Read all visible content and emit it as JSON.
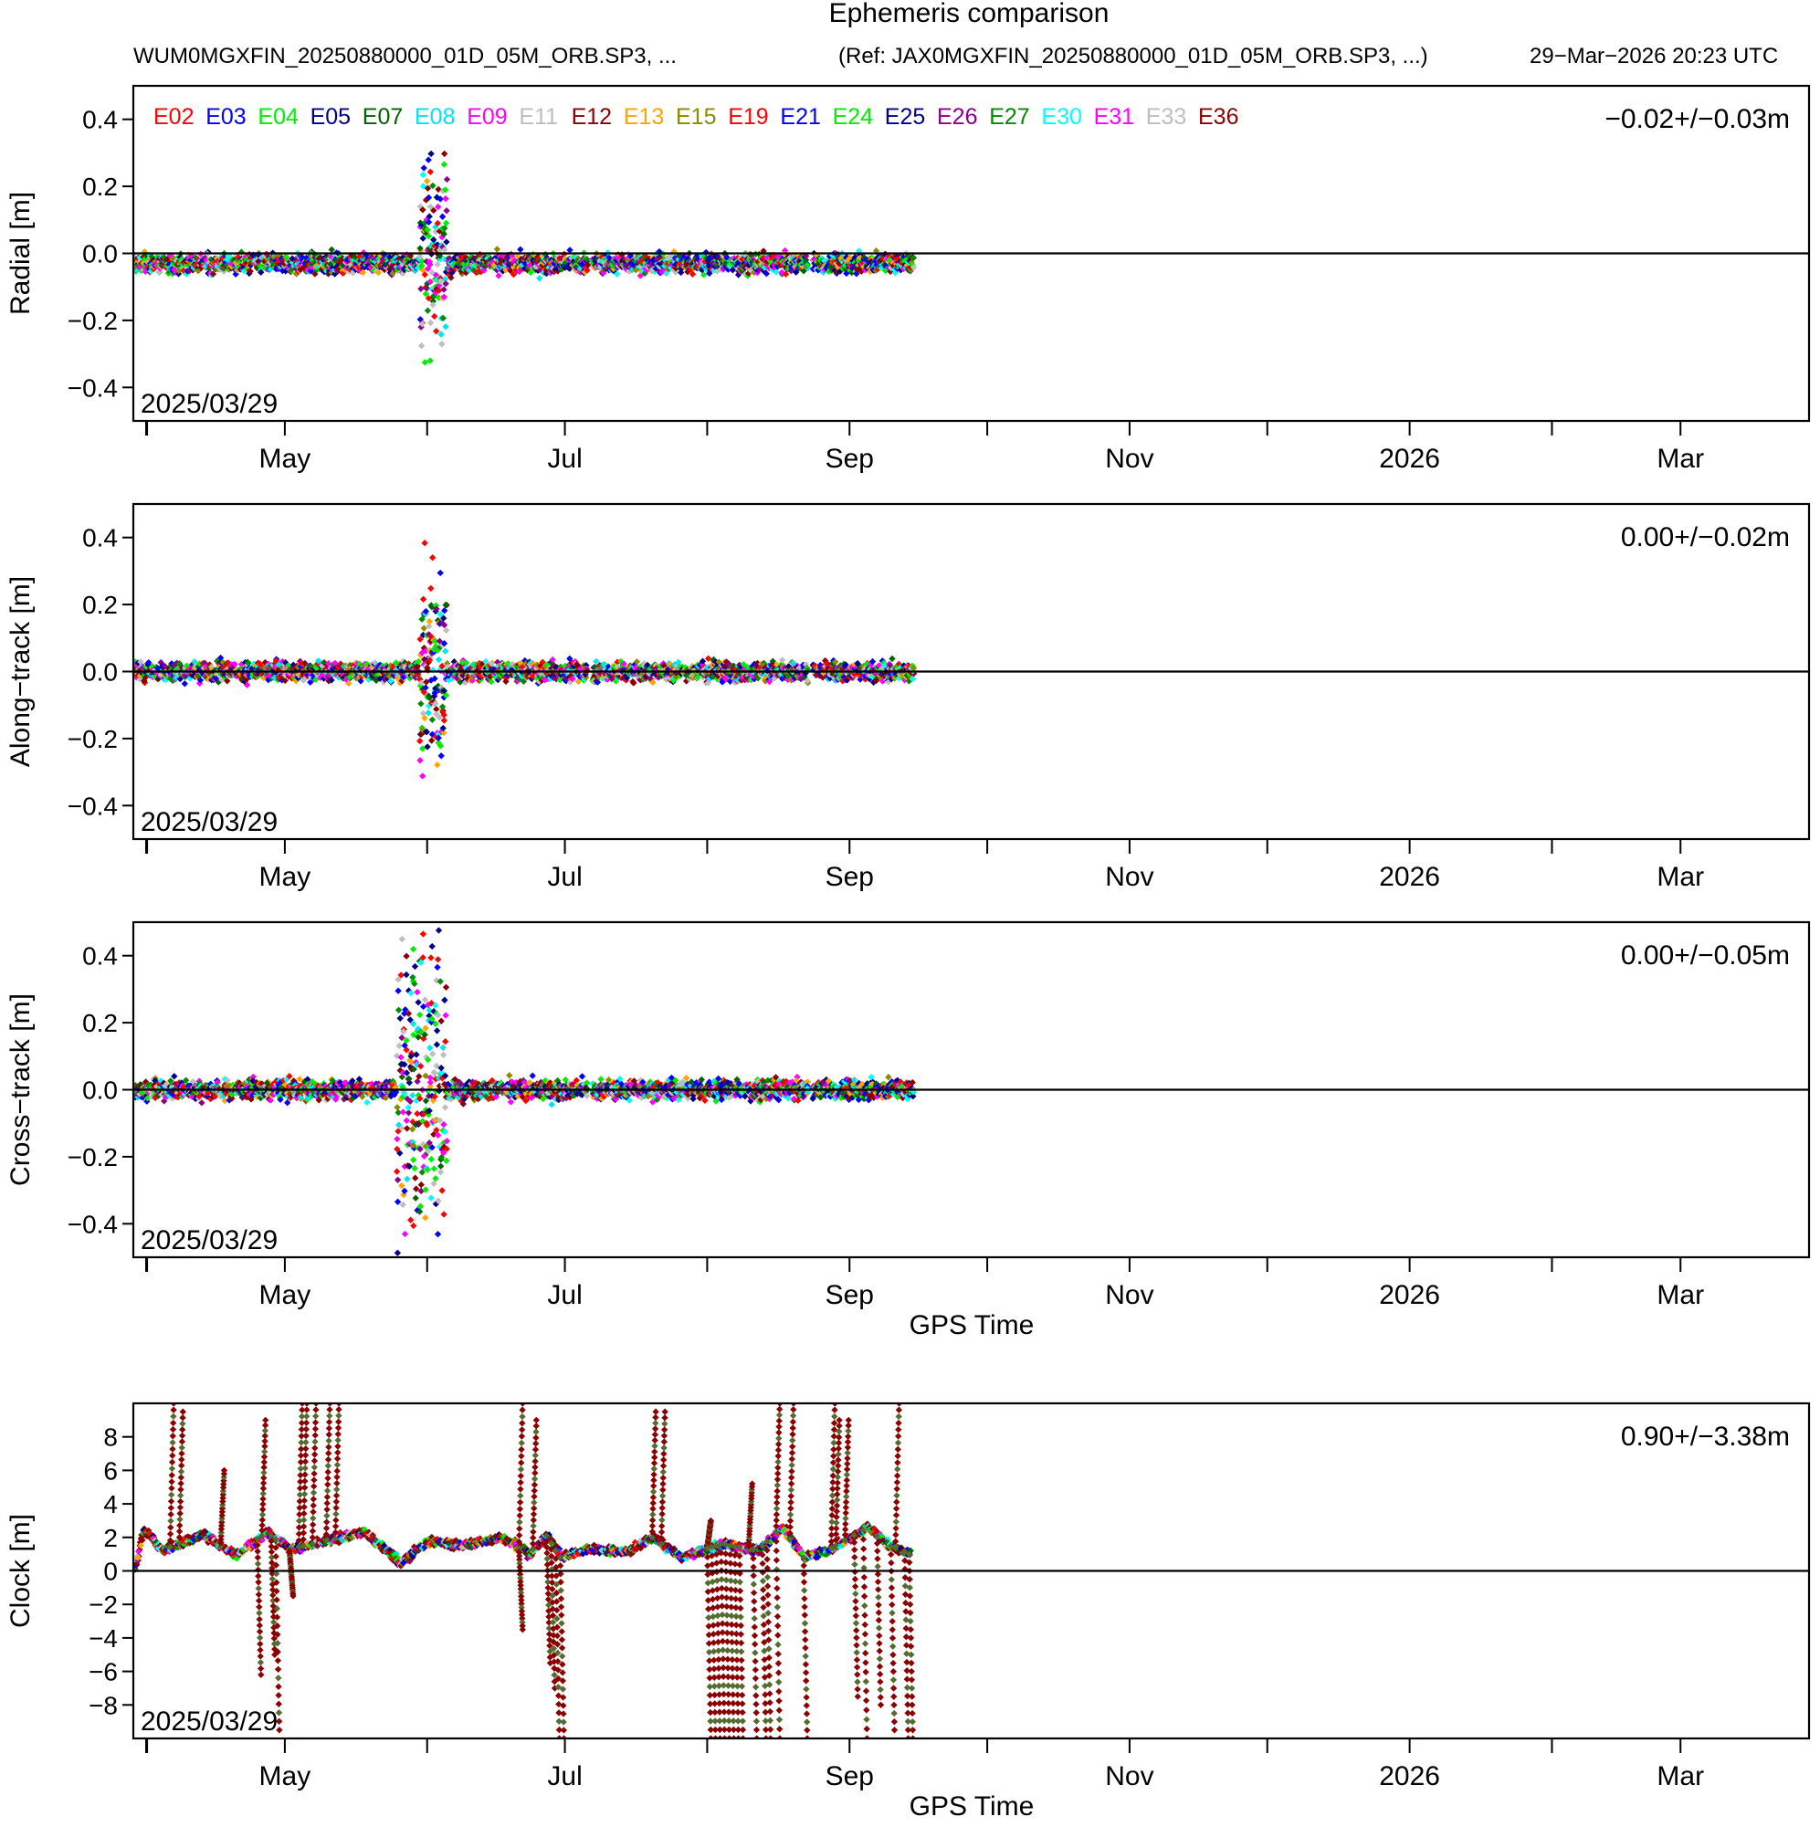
{
  "header": {
    "title": "Ephemeris comparison",
    "file": "WUM0MGXFIN_20250880000_01D_05M_ORB.SP3, ...",
    "reference": "(Ref: JAX0MGXFIN_20250880000_01D_05M_ORB.SP3, ...)",
    "created": "29−Mar−2026 20:23 UTC"
  },
  "chart_data": {
    "type": "scatter",
    "x_axis": {
      "label": "GPS Time",
      "range": [
        "2025-03-29",
        "2026-03-29"
      ],
      "tick_labels": [
        {
          "date": "2025-05-01",
          "label": "May"
        },
        {
          "date": "2025-07-01",
          "label": "Jul"
        },
        {
          "date": "2025-09-01",
          "label": "Sep"
        },
        {
          "date": "2025-11-01",
          "label": "Nov"
        },
        {
          "date": "2026-01-01",
          "label": "2026"
        },
        {
          "date": "2026-03-01",
          "label": "Mar"
        }
      ],
      "minor_ticks": [
        "2025-04-01",
        "2025-06-01",
        "2025-08-01",
        "2025-10-01",
        "2025-12-01",
        "2026-02-01"
      ]
    },
    "start_date_label": "2025/03/29",
    "legend": {
      "placement": "top-left of first panel",
      "entries": [
        {
          "name": "E02",
          "color": "#ff0000"
        },
        {
          "name": "E03",
          "color": "#0000ff"
        },
        {
          "name": "E04",
          "color": "#00ee00"
        },
        {
          "name": "E05",
          "color": "#00008b"
        },
        {
          "name": "E07",
          "color": "#006400"
        },
        {
          "name": "E08",
          "color": "#00e5ee"
        },
        {
          "name": "E09",
          "color": "#ff00ff"
        },
        {
          "name": "E11",
          "color": "#bebebe"
        },
        {
          "name": "E12",
          "color": "#8b0000"
        },
        {
          "name": "E13",
          "color": "#ffa500"
        },
        {
          "name": "E15",
          "color": "#8b8b00"
        },
        {
          "name": "E19",
          "color": "#ff0000"
        },
        {
          "name": "E21",
          "color": "#0000ff"
        },
        {
          "name": "E24",
          "color": "#00ee00"
        },
        {
          "name": "E25",
          "color": "#00008b"
        },
        {
          "name": "E26",
          "color": "#8b008b"
        },
        {
          "name": "E27",
          "color": "#008b00"
        },
        {
          "name": "E30",
          "color": "#00ffff"
        },
        {
          "name": "E31",
          "color": "#ff00ff"
        },
        {
          "name": "E33",
          "color": "#bebebe"
        },
        {
          "name": "E36",
          "color": "#8b0000"
        }
      ]
    },
    "panels": [
      {
        "ylabel": "Radial [m]",
        "ylim": [
          -0.5,
          0.5
        ],
        "yticks": [
          -0.4,
          -0.2,
          0.0,
          0.2,
          0.4
        ],
        "ytick_labels": [
          "−0.4",
          "−0.2",
          "0.0",
          "0.2",
          "0.4"
        ],
        "stat": "−0.02+/−0.03m",
        "show_xlabel": false,
        "data_spans": [
          [
            "2025-03-29",
            "2025-04-05"
          ],
          [
            "2025-04-06",
            "2025-04-18"
          ],
          [
            "2025-04-19",
            "2025-05-05"
          ],
          [
            "2025-05-06",
            "2025-05-17"
          ],
          [
            "2025-05-18",
            "2025-06-01"
          ],
          [
            "2025-06-02",
            "2025-06-08"
          ],
          [
            "2025-06-09",
            "2025-06-16"
          ],
          [
            "2025-06-17",
            "2025-06-24"
          ],
          [
            "2025-06-25",
            "2025-07-05"
          ],
          [
            "2025-07-07",
            "2025-07-22"
          ],
          [
            "2025-07-23",
            "2025-08-08"
          ],
          [
            "2025-08-09",
            "2025-08-22"
          ],
          [
            "2025-08-24",
            "2025-09-14"
          ]
        ],
        "bands": [
          {
            "start": "2025-03-29",
            "end": "2025-05-29",
            "mean": -0.03,
            "spread": 0.04
          },
          {
            "start": "2025-05-30",
            "end": "2025-06-04",
            "mean": 0.0,
            "spread": 0.3
          },
          {
            "start": "2025-06-05",
            "end": "2025-09-14",
            "mean": -0.03,
            "spread": 0.04
          }
        ]
      },
      {
        "ylabel": "Along−track [m]",
        "ylim": [
          -0.5,
          0.5
        ],
        "yticks": [
          -0.4,
          -0.2,
          0.0,
          0.2,
          0.4
        ],
        "ytick_labels": [
          "−0.4",
          "−0.2",
          "0.0",
          "0.2",
          "0.4"
        ],
        "stat": "0.00+/−0.02m",
        "show_xlabel": false,
        "data_spans": [
          [
            "2025-03-29",
            "2025-04-05"
          ],
          [
            "2025-04-06",
            "2025-04-18"
          ],
          [
            "2025-04-19",
            "2025-05-05"
          ],
          [
            "2025-05-06",
            "2025-05-17"
          ],
          [
            "2025-05-18",
            "2025-06-01"
          ],
          [
            "2025-06-02",
            "2025-06-08"
          ],
          [
            "2025-06-09",
            "2025-06-16"
          ],
          [
            "2025-06-17",
            "2025-06-24"
          ],
          [
            "2025-06-25",
            "2025-07-05"
          ],
          [
            "2025-07-07",
            "2025-07-22"
          ],
          [
            "2025-07-23",
            "2025-08-08"
          ],
          [
            "2025-08-09",
            "2025-08-22"
          ],
          [
            "2025-08-24",
            "2025-09-14"
          ]
        ],
        "bands": [
          {
            "start": "2025-03-29",
            "end": "2025-05-29",
            "mean": 0.0,
            "spread": 0.04
          },
          {
            "start": "2025-05-30",
            "end": "2025-06-04",
            "mean": 0.0,
            "spread": 0.3
          },
          {
            "start": "2025-06-05",
            "end": "2025-09-14",
            "mean": 0.0,
            "spread": 0.04
          }
        ]
      },
      {
        "ylabel": "Cross−track [m]",
        "ylim": [
          -0.5,
          0.5
        ],
        "yticks": [
          -0.4,
          -0.2,
          0.0,
          0.2,
          0.4
        ],
        "ytick_labels": [
          "−0.4",
          "−0.2",
          "0.0",
          "0.2",
          "0.4"
        ],
        "stat": "0.00+/−0.05m",
        "show_xlabel": true,
        "data_spans": [
          [
            "2025-03-29",
            "2025-04-05"
          ],
          [
            "2025-04-06",
            "2025-04-18"
          ],
          [
            "2025-04-19",
            "2025-05-05"
          ],
          [
            "2025-05-06",
            "2025-05-17"
          ],
          [
            "2025-05-18",
            "2025-06-01"
          ],
          [
            "2025-06-02",
            "2025-06-08"
          ],
          [
            "2025-06-09",
            "2025-06-16"
          ],
          [
            "2025-06-17",
            "2025-06-24"
          ],
          [
            "2025-06-25",
            "2025-07-05"
          ],
          [
            "2025-07-07",
            "2025-07-22"
          ],
          [
            "2025-07-23",
            "2025-08-08"
          ],
          [
            "2025-08-09",
            "2025-08-22"
          ],
          [
            "2025-08-24",
            "2025-09-14"
          ]
        ],
        "bands": [
          {
            "start": "2025-03-29",
            "end": "2025-05-24",
            "mean": 0.0,
            "spread": 0.04
          },
          {
            "start": "2025-05-25",
            "end": "2025-06-04",
            "mean": 0.0,
            "spread": 0.48
          },
          {
            "start": "2025-06-05",
            "end": "2025-09-14",
            "mean": 0.0,
            "spread": 0.04
          }
        ]
      },
      {
        "ylabel": "Clock [m]",
        "ylim": [
          -10,
          10
        ],
        "yticks": [
          -8,
          -6,
          -4,
          -2,
          0,
          2,
          4,
          6,
          8
        ],
        "ytick_labels": [
          "−8",
          "−6",
          "−4",
          "−2",
          "0",
          "2",
          "4",
          "6",
          "8"
        ],
        "stat": "0.90+/−3.38m",
        "show_xlabel": true,
        "baseline": [
          [
            "2025-03-29",
            0.0
          ],
          [
            "2025-03-31",
            2.5
          ],
          [
            "2025-04-04",
            1.2
          ],
          [
            "2025-04-13",
            2.2
          ],
          [
            "2025-04-20",
            0.9
          ],
          [
            "2025-04-27",
            2.3
          ],
          [
            "2025-05-02",
            1.3
          ],
          [
            "2025-05-10",
            1.8
          ],
          [
            "2025-05-18",
            2.3
          ],
          [
            "2025-05-23",
            1.2
          ],
          [
            "2025-05-26",
            0.4
          ],
          [
            "2025-06-01",
            1.8
          ],
          [
            "2025-06-08",
            1.5
          ],
          [
            "2025-06-17",
            2.0
          ],
          [
            "2025-06-23",
            1.0
          ],
          [
            "2025-06-27",
            2.1
          ],
          [
            "2025-06-30",
            0.8
          ],
          [
            "2025-07-06",
            1.3
          ],
          [
            "2025-07-14",
            1.1
          ],
          [
            "2025-07-20",
            2.0
          ],
          [
            "2025-07-26",
            0.8
          ],
          [
            "2025-08-04",
            1.6
          ],
          [
            "2025-08-12",
            1.2
          ],
          [
            "2025-08-17",
            2.6
          ],
          [
            "2025-08-22",
            0.8
          ],
          [
            "2025-08-27",
            1.2
          ],
          [
            "2025-09-05",
            2.6
          ],
          [
            "2025-09-09",
            1.6
          ],
          [
            "2025-09-14",
            1.0
          ]
        ],
        "excursions": [
          {
            "date": "2025-04-06",
            "to": 10.0
          },
          {
            "date": "2025-04-08",
            "to": 9.5
          },
          {
            "date": "2025-04-17",
            "to": 6.0
          },
          {
            "date": "2025-04-25",
            "to": -6.2
          },
          {
            "date": "2025-04-26",
            "to": 9.0
          },
          {
            "date": "2025-04-28",
            "to": -5.0
          },
          {
            "date": "2025-04-29",
            "to": -9.5
          },
          {
            "date": "2025-05-02",
            "to": -1.5
          },
          {
            "date": "2025-05-04",
            "to": 10.0
          },
          {
            "date": "2025-05-05",
            "to": 10.0
          },
          {
            "date": "2025-05-07",
            "to": 10.0
          },
          {
            "date": "2025-05-10",
            "to": 10.0
          },
          {
            "date": "2025-05-12",
            "to": 10.0
          },
          {
            "date": "2025-06-21",
            "to": 10.0
          },
          {
            "date": "2025-06-21",
            "to": -3.5
          },
          {
            "date": "2025-06-24",
            "to": 9.0
          },
          {
            "date": "2025-06-27",
            "to": -5.5
          },
          {
            "date": "2025-06-28",
            "to": -7.0
          },
          {
            "date": "2025-06-29",
            "to": -10.0
          },
          {
            "date": "2025-06-30",
            "to": -10.0
          },
          {
            "date": "2025-07-20",
            "to": 9.5
          },
          {
            "date": "2025-07-22",
            "to": 9.5
          },
          {
            "date": "2025-08-01",
            "to": 3.0
          },
          {
            "date": "2025-08-01",
            "to": -10.0
          },
          {
            "date": "2025-08-02",
            "to": -10.0
          },
          {
            "date": "2025-08-03",
            "to": -10.0
          },
          {
            "date": "2025-08-04",
            "to": -10.0
          },
          {
            "date": "2025-08-05",
            "to": -10.0
          },
          {
            "date": "2025-08-06",
            "to": -10.0
          },
          {
            "date": "2025-08-07",
            "to": -10.0
          },
          {
            "date": "2025-08-08",
            "to": -10.0
          },
          {
            "date": "2025-08-10",
            "to": 5.2
          },
          {
            "date": "2025-08-11",
            "to": -10.0
          },
          {
            "date": "2025-08-13",
            "to": -10.0
          },
          {
            "date": "2025-08-14",
            "to": -10.0
          },
          {
            "date": "2025-08-16",
            "to": 10.0
          },
          {
            "date": "2025-08-16",
            "to": -10.0
          },
          {
            "date": "2025-08-19",
            "to": 10.0
          },
          {
            "date": "2025-08-22",
            "to": -10.0
          },
          {
            "date": "2025-08-28",
            "to": 10.0
          },
          {
            "date": "2025-08-29",
            "to": 9.0
          },
          {
            "date": "2025-08-31",
            "to": 9.0
          },
          {
            "date": "2025-09-02",
            "to": -7.5
          },
          {
            "date": "2025-09-04",
            "to": -10.0
          },
          {
            "date": "2025-09-07",
            "to": -8.0
          },
          {
            "date": "2025-09-10",
            "to": -9.5
          },
          {
            "date": "2025-09-11",
            "to": 10.0
          },
          {
            "date": "2025-09-13",
            "to": -10.0
          },
          {
            "date": "2025-09-14",
            "to": -10.0
          }
        ]
      }
    ]
  }
}
